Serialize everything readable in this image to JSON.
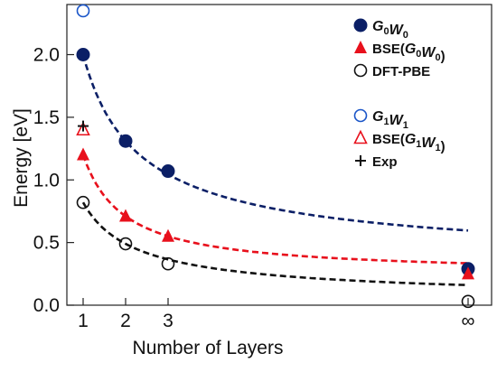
{
  "chart_data": {
    "type": "scatter",
    "title": "",
    "xlabel": "Number of Layers",
    "ylabel": "Energy  [eV]",
    "categories": [
      "1",
      "2",
      "3",
      "∞"
    ],
    "ylim": [
      0,
      2.4
    ],
    "yticks": [
      "0.0",
      "0.5",
      "1.0",
      "1.5",
      "2.0"
    ],
    "grid": false,
    "legend_position": "top-right",
    "series": [
      {
        "name": "G0W0",
        "legend": [
          "G",
          "0",
          "W",
          "0"
        ],
        "marker": "filled-circle",
        "color": "#0b1f66",
        "values": [
          2.0,
          1.31,
          1.07,
          0.29
        ]
      },
      {
        "name": "BSE(G0W0)",
        "legend": [
          "BSE(",
          "G",
          "0",
          "W",
          "0",
          ")"
        ],
        "marker": "filled-triangle",
        "color": "#e8101c",
        "values": [
          1.2,
          0.71,
          0.55,
          0.25
        ]
      },
      {
        "name": "DFT-PBE",
        "legend": [
          "DFT-PBE"
        ],
        "marker": "open-circle",
        "color": "#111111",
        "values": [
          0.82,
          0.49,
          0.33,
          0.03
        ]
      },
      {
        "name": "G1W1",
        "legend": [
          "G",
          "1",
          "W",
          "1"
        ],
        "marker": "open-circle",
        "color": "#1a55c8",
        "values": [
          2.35,
          null,
          null,
          null
        ]
      },
      {
        "name": "BSE(G1W1)",
        "legend": [
          "BSE(",
          "G",
          "1",
          "W",
          "1",
          ")"
        ],
        "marker": "open-triangle",
        "color": "#e8101c",
        "values": [
          1.4,
          null,
          null,
          null
        ]
      },
      {
        "name": "Exp",
        "legend": [
          "Exp"
        ],
        "marker": "plus",
        "color": "#111111",
        "values": [
          1.43,
          null,
          null,
          null
        ]
      }
    ],
    "fits": [
      {
        "color": "#0b1f66",
        "style": "dashed",
        "values": [
          2.0,
          1.31,
          1.07,
          0.29
        ]
      },
      {
        "color": "#e8101c",
        "style": "dashed",
        "values": [
          1.2,
          0.71,
          0.55,
          0.25
        ]
      },
      {
        "color": "#111111",
        "style": "dashed",
        "values": [
          0.82,
          0.49,
          0.33,
          0.03
        ]
      }
    ]
  }
}
